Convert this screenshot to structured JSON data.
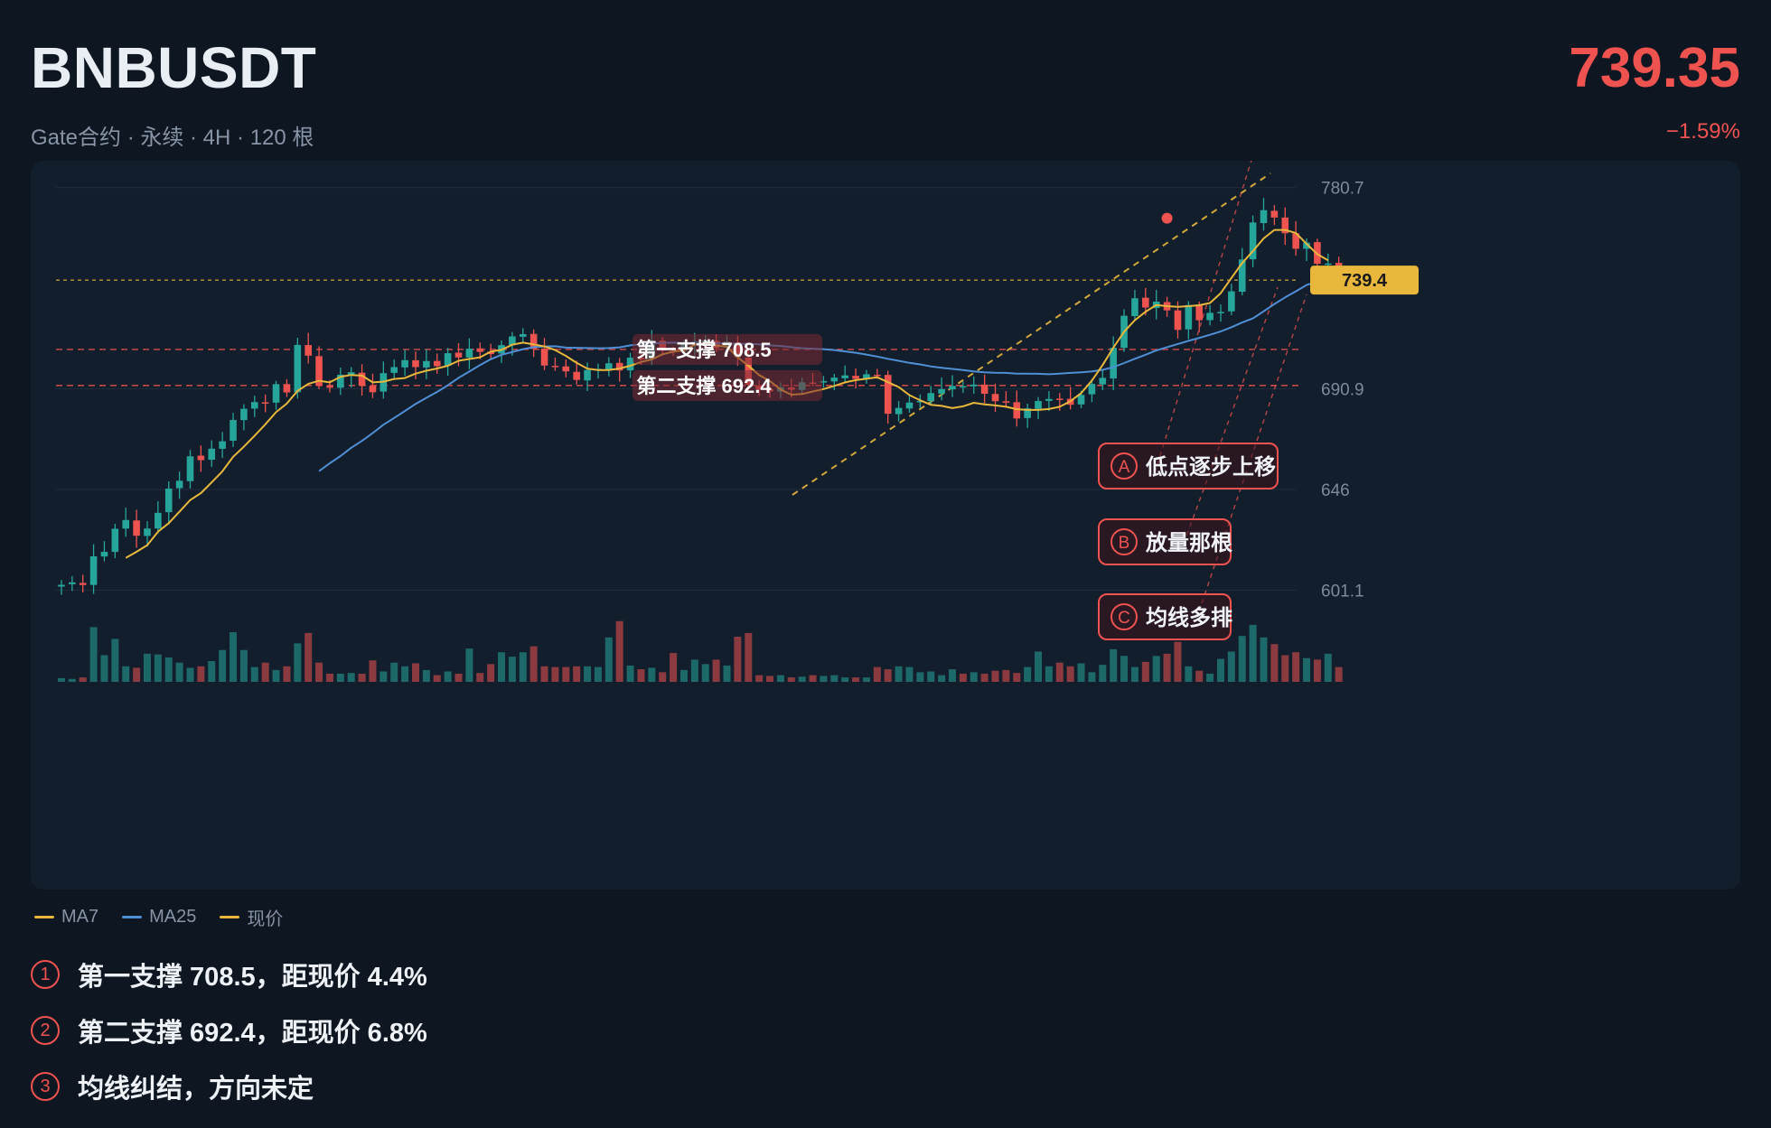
{
  "header": {
    "symbol": "BNBUSDT",
    "subtitle": "Gate合约 · 永续 · 4H · 120 根",
    "price": "739.35",
    "change": "−1.59%"
  },
  "legend": {
    "ma7": "MA7",
    "ma25": "MA25",
    "current": "现价"
  },
  "notes": [
    {
      "num": "1",
      "text": "第一支撑 708.5，距现价 4.4%"
    },
    {
      "num": "2",
      "text": "第二支撑 692.4，距现价 6.8%"
    },
    {
      "num": "3",
      "text": "均线纠结，方向未定"
    }
  ],
  "colors": {
    "up": "#26a69a",
    "down": "#ef5350",
    "ma7": "#e8b73c",
    "ma25": "#4f8fd6",
    "support": "#ef5350",
    "price_tag": "#e8b73c",
    "bg": "#0e1621",
    "panel": "#131e2c"
  },
  "chart_data": {
    "type": "candlestick",
    "timeframe": "4H",
    "bars": 120,
    "ylim": [
      588,
      787
    ],
    "y_ticks": [
      {
        "value": 780.7,
        "label": "780.7"
      },
      {
        "value": 690.9,
        "label": "690.9"
      },
      {
        "value": 646,
        "label": "646"
      },
      {
        "value": 601.1,
        "label": "601.1"
      }
    ],
    "current_price": 739.4,
    "current_label": "739.4",
    "supports": [
      {
        "value": 708.5,
        "label": "第一支撑 708.5"
      },
      {
        "value": 692.4,
        "label": "第二支撑 692.4"
      }
    ],
    "closes": [
      603.5,
      604.6,
      603.4,
      616.2,
      618.2,
      628.5,
      632.4,
      625.4,
      628.6,
      635.6,
      646.4,
      649.9,
      660.8,
      659.1,
      664.2,
      667.5,
      677.0,
      682.0,
      685.0,
      684.6,
      693.0,
      689.3,
      710.5,
      705.7,
      692.3,
      691.4,
      697.2,
      698.3,
      692.3,
      689.4,
      697.9,
      700.6,
      703.7,
      700.6,
      703.3,
      701.0,
      706.8,
      704.9,
      708.8,
      707.4,
      706.4,
      710.4,
      714.3,
      715.3,
      708.7,
      701.3,
      700.9,
      698.7,
      694.9,
      699.3,
      699.8,
      702.3,
      699.1,
      704.8,
      704.0,
      712.4,
      708.0,
      707.7,
      710.8,
      712.0,
      712.5,
      709.1,
      711.9,
      705.1,
      692.7,
      690.7,
      689.8,
      691.6,
      690.5,
      693.8,
      693.7,
      694.4,
      695.9,
      696.9,
      695.4,
      697.4,
      697.0,
      679.8,
      682.4,
      684.8,
      685.5,
      689.0,
      690.8,
      692.2,
      692.1,
      692.8,
      688.7,
      685.4,
      684.7,
      677.7,
      682.2,
      685.5,
      686.4,
      686.3,
      683.8,
      688.2,
      693.1,
      695.8,
      709.2,
      723.5,
      731.3,
      727.2,
      729.8,
      725.9,
      717.2,
      728.3,
      721.5,
      724.8,
      725.2,
      734.4,
      748.6,
      765.1,
      770.6,
      767.3,
      760.3,
      753.4,
      756.1,
      746.7,
      746.8,
      739.35
    ],
    "ma7": [
      null,
      null,
      null,
      null,
      null,
      null,
      615.5,
      618.2,
      621.2,
      627.2,
      631.0,
      636.1,
      641.3,
      644.4,
      649.2,
      654.1,
      660.6,
      665.1,
      670.0,
      675.1,
      680.5,
      684.3,
      690.0,
      693.1,
      694.5,
      693.8,
      696.3,
      697.1,
      696.8,
      693.8,
      694.1,
      695.3,
      695.7,
      697.7,
      699.0,
      700.0,
      701.2,
      703.4,
      704.2,
      705.0,
      707.5,
      708.3,
      710.6,
      711.5,
      710.7,
      709.8,
      708.2,
      705.6,
      702.5,
      699.9,
      699.3,
      699.3,
      700.0,
      701.2,
      702.9,
      704.0,
      706.3,
      707.5,
      708.1,
      710.6,
      711.3,
      710.2,
      709.7,
      705.0,
      701.2,
      697.1,
      694.4,
      690.6,
      688.3,
      688.6,
      689.7,
      690.8,
      692.2,
      693.8,
      694.8,
      695.4,
      696.1,
      693.9,
      691.7,
      688.1,
      685.8,
      683.8,
      683.3,
      682.3,
      683.1,
      684.7,
      684.0,
      683.5,
      682.9,
      681.8,
      681.5,
      681.5,
      681.9,
      682.9,
      685.4,
      689.0,
      694.6,
      701.5,
      709.3,
      716.4,
      721.5,
      725.3,
      728.3,
      727.8,
      727.5,
      727.8,
      728.2,
      729.2,
      733.6,
      740.4,
      747.0,
      752.3,
      758.0,
      761.8,
      761.8,
      760.4,
      755.6,
      751.0,
      748.2
    ],
    "ma25": [
      null,
      null,
      null,
      null,
      null,
      null,
      null,
      null,
      null,
      null,
      null,
      null,
      null,
      null,
      null,
      null,
      null,
      null,
      null,
      null,
      null,
      null,
      null,
      null,
      654.2,
      657.7,
      660.9,
      664.6,
      667.7,
      671.2,
      674.9,
      677.9,
      681.0,
      684.2,
      686.9,
      689.5,
      692.5,
      695.8,
      698.6,
      701.5,
      704.1,
      706.1,
      707.3,
      708.6,
      709.5,
      709.8,
      709.9,
      709.3,
      709.2,
      709.1,
      709.0,
      709.1,
      709.4,
      710.3,
      710.7,
      711.2,
      711.4,
      711.5,
      711.4,
      711.4,
      711.3,
      711.2,
      711.2,
      711.0,
      711.0,
      710.8,
      710.3,
      710.0,
      709.5,
      709.0,
      708.8,
      708.6,
      708.2,
      707.6,
      707.0,
      706.2,
      705.3,
      704.3,
      703.4,
      702.5,
      701.8,
      700.9,
      700.3,
      699.8,
      699.3,
      698.7,
      698.3,
      698.1,
      698.0,
      697.7,
      697.7,
      697.6,
      697.4,
      697.7,
      698.0,
      698.3,
      698.7,
      699.4,
      700.6,
      702.4,
      704.3,
      706.1,
      708.0,
      709.5,
      710.9,
      712.3,
      713.6,
      715.0,
      716.5,
      718.4,
      720.5,
      722.3,
      725.5,
      728.7,
      731.7,
      734.4,
      737.2,
      738.7,
      740.9,
      740.8
    ],
    "volume_scale": [
      0.05,
      0.04,
      0.06,
      0.74,
      0.36,
      0.58,
      0.21,
      0.19,
      0.38,
      0.37,
      0.33,
      0.26,
      0.19,
      0.21,
      0.28,
      0.43,
      0.67,
      0.43,
      0.2,
      0.26,
      0.16,
      0.21,
      0.52,
      0.66,
      0.26,
      0.11,
      0.11,
      0.12,
      0.11,
      0.29,
      0.14,
      0.26,
      0.21,
      0.25,
      0.16,
      0.09,
      0.14,
      0.11,
      0.45,
      0.12,
      0.24,
      0.4,
      0.34,
      0.4,
      0.48,
      0.21,
      0.2,
      0.2,
      0.21,
      0.21,
      0.2,
      0.6,
      0.82,
      0.22,
      0.17,
      0.19,
      0.13,
      0.39,
      0.16,
      0.3,
      0.24,
      0.3,
      0.22,
      0.61,
      0.66,
      0.09,
      0.08,
      0.09,
      0.06,
      0.07,
      0.09,
      0.08,
      0.09,
      0.06,
      0.06,
      0.06,
      0.2,
      0.17,
      0.21,
      0.2,
      0.13,
      0.14,
      0.09,
      0.17,
      0.11,
      0.13,
      0.11,
      0.15,
      0.16,
      0.12,
      0.2,
      0.41,
      0.21,
      0.26,
      0.21,
      0.25,
      0.13,
      0.23,
      0.44,
      0.35,
      0.2,
      0.27,
      0.35,
      0.38,
      0.54,
      0.21,
      0.15,
      0.11,
      0.31,
      0.41,
      0.62,
      0.77,
      0.6,
      0.51,
      0.36,
      0.4,
      0.32,
      0.3,
      0.38,
      0.2,
      0.4
    ],
    "annotations": [
      {
        "tag": "A",
        "text": "低点逐步上移"
      },
      {
        "tag": "B",
        "text": "放量那根"
      },
      {
        "tag": "C",
        "text": "均线多排"
      }
    ]
  }
}
